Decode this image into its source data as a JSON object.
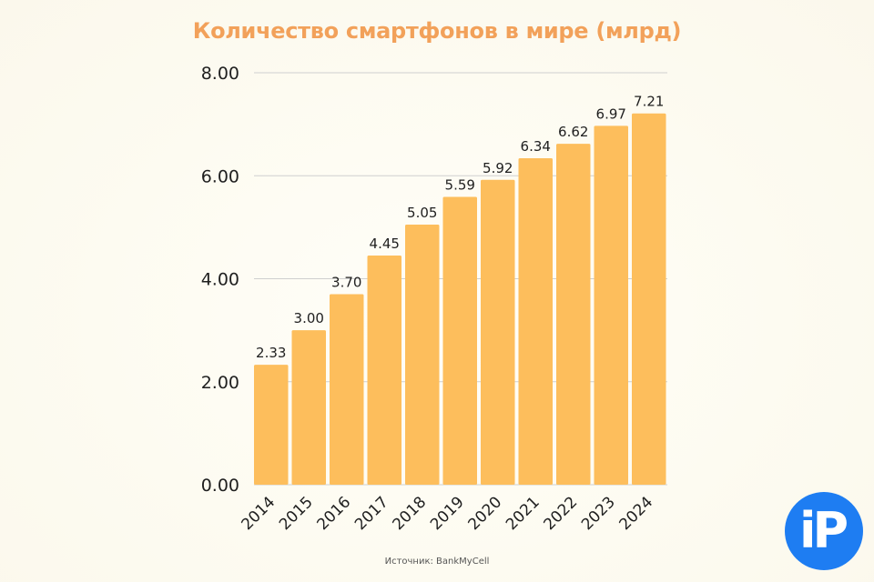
{
  "chart_data": {
    "type": "bar",
    "title": "Количество смартфонов в мире (млрд)",
    "categories": [
      "2014",
      "2015",
      "2016",
      "2017",
      "2018",
      "2019",
      "2020",
      "2021",
      "2022",
      "2023",
      "2024"
    ],
    "values": [
      2.33,
      3.0,
      3.7,
      4.45,
      5.05,
      5.59,
      5.92,
      6.34,
      6.62,
      6.97,
      7.21
    ],
    "value_labels": [
      "2.33",
      "3.00",
      "3.70",
      "4.45",
      "5.05",
      "5.59",
      "5.92",
      "6.34",
      "6.62",
      "6.97",
      "7.21"
    ],
    "ylim": [
      0,
      8
    ],
    "y_ticks": [
      0,
      2,
      4,
      6,
      8
    ],
    "y_tick_labels": [
      "0.00",
      "2.00",
      "4.00",
      "6.00",
      "8.00"
    ],
    "grid": true,
    "bar_color": "#fdbe5c",
    "title_color": "#f2a15a"
  },
  "source": "Источник: BankMyCell",
  "logo": {
    "text": "iP",
    "color": "#1e7df2"
  }
}
